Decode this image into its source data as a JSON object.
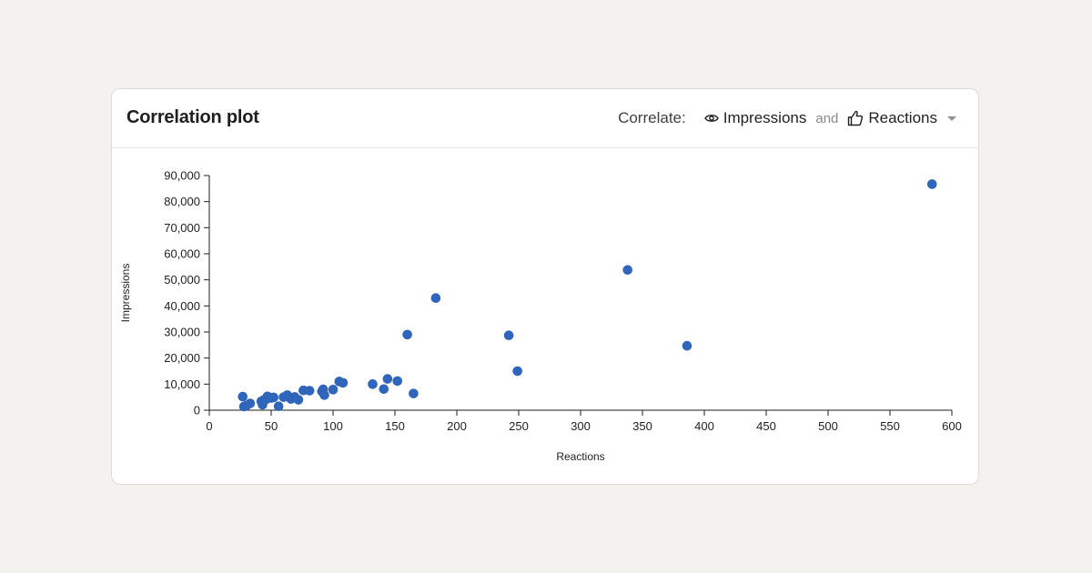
{
  "card": {
    "title": "Correlation plot"
  },
  "controls": {
    "correlate_label": "Correlate:",
    "metric_a": {
      "label": "Impressions",
      "icon": "eye-icon"
    },
    "joiner": "and",
    "metric_b": {
      "label": "Reactions",
      "icon": "thumbs-up-icon"
    },
    "dropdown_icon": "caret-down-icon"
  },
  "colors": {
    "point": "#2f65bb",
    "background": "#f3f2ef",
    "card": "#ffffff"
  },
  "chart_data": {
    "type": "scatter",
    "title": "",
    "xlabel": "Reactions",
    "ylabel": "Impressions",
    "xlim": [
      0,
      600
    ],
    "ylim": [
      0,
      90000
    ],
    "x_ticks": [
      0,
      50,
      100,
      150,
      200,
      250,
      300,
      350,
      400,
      450,
      500,
      550,
      600
    ],
    "x_tick_labels": [
      "0",
      "50",
      "100",
      "150",
      "200",
      "250",
      "300",
      "350",
      "400",
      "450",
      "500",
      "550",
      "600"
    ],
    "y_ticks": [
      0,
      10000,
      20000,
      30000,
      40000,
      50000,
      60000,
      70000,
      80000,
      90000
    ],
    "y_tick_labels": [
      "0",
      "10,000",
      "20,000",
      "30,000",
      "40,000",
      "50,000",
      "60,000",
      "70,000",
      "80,000",
      "90,000"
    ],
    "grid": false,
    "legend": "none",
    "series": [
      {
        "points": [
          [
            27,
            5200
          ],
          [
            28,
            1400
          ],
          [
            30,
            1800
          ],
          [
            33,
            2600
          ],
          [
            42,
            3400
          ],
          [
            43,
            2100
          ],
          [
            44,
            3900
          ],
          [
            46,
            4200
          ],
          [
            47,
            5300
          ],
          [
            50,
            4700
          ],
          [
            52,
            4900
          ],
          [
            56,
            1500
          ],
          [
            60,
            5000
          ],
          [
            63,
            5800
          ],
          [
            66,
            4300
          ],
          [
            69,
            5100
          ],
          [
            72,
            4000
          ],
          [
            76,
            7600
          ],
          [
            81,
            7500
          ],
          [
            91,
            7200
          ],
          [
            92,
            8000
          ],
          [
            93,
            5800
          ],
          [
            100,
            7900
          ],
          [
            105,
            11000
          ],
          [
            108,
            10500
          ],
          [
            132,
            10000
          ],
          [
            141,
            8100
          ],
          [
            144,
            12000
          ],
          [
            152,
            11200
          ],
          [
            165,
            6400
          ],
          [
            160,
            29000
          ],
          [
            183,
            43000
          ],
          [
            242,
            28700
          ],
          [
            249,
            15000
          ],
          [
            338,
            53800
          ],
          [
            386,
            24700
          ],
          [
            584,
            86700
          ]
        ]
      }
    ]
  }
}
